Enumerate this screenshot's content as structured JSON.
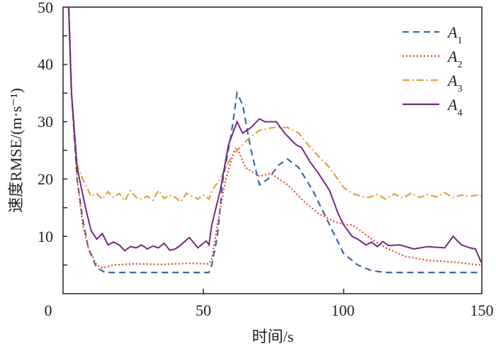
{
  "chart_data": {
    "type": "line",
    "title": "",
    "xlabel": "时间/s",
    "ylabel": "速度RMSE/(m·s⁻¹)",
    "xlim": [
      0,
      150
    ],
    "ylim": [
      0,
      50
    ],
    "xticks": [
      "0",
      "50",
      "100",
      "150"
    ],
    "yticks": [
      "10",
      "20",
      "30",
      "40",
      "50"
    ],
    "grid": false,
    "legend_position": "top-right",
    "series": [
      {
        "name": "A",
        "sub": "1",
        "color": "#3a67a8",
        "dash": "9,6",
        "x": [
          2,
          3,
          5,
          7,
          9,
          12,
          15,
          20,
          30,
          40,
          52,
          53,
          55,
          57,
          60,
          62,
          64,
          67,
          70,
          73,
          77,
          80,
          84,
          89,
          95,
          100,
          105,
          110,
          115,
          130,
          150
        ],
        "y": [
          50,
          35,
          20,
          13,
          8,
          4.5,
          3.7,
          3.7,
          3.7,
          3.7,
          3.7,
          5,
          10,
          20,
          28,
          35,
          33,
          25,
          19,
          20,
          22.5,
          23.5,
          22,
          18,
          12,
          7,
          5,
          4,
          3.7,
          3.7,
          3.7
        ]
      },
      {
        "name": "A",
        "sub": "2",
        "color": "#d9462b",
        "dash": "2,3",
        "x": [
          2,
          3,
          5,
          7,
          9,
          12,
          14,
          18,
          25,
          35,
          45,
          52,
          53,
          55,
          58,
          61,
          62,
          65,
          70,
          74,
          80,
          86,
          91,
          97,
          101,
          103,
          106,
          110,
          115,
          122,
          130,
          140,
          148,
          150
        ],
        "y": [
          50,
          35,
          20,
          12,
          8,
          5,
          4.5,
          5,
          5.2,
          5.1,
          5.3,
          5.2,
          6,
          12,
          20,
          25,
          25.5,
          22,
          20.5,
          21,
          19,
          16,
          14,
          12.5,
          12,
          12,
          11,
          9.5,
          8,
          6.5,
          5.8,
          5.5,
          5,
          5.2
        ]
      },
      {
        "name": "A",
        "sub": "3",
        "color": "#e3a13a",
        "dash": "10,4,2,4",
        "x": [
          2,
          3,
          5,
          7,
          10,
          12,
          14,
          16,
          18,
          20,
          22,
          24,
          26,
          28,
          30,
          32,
          34,
          36,
          38,
          40,
          42,
          44,
          46,
          48,
          50,
          52,
          53,
          56,
          59,
          62,
          66,
          70,
          75,
          80,
          84,
          89,
          95,
          100,
          103,
          106,
          109,
          112,
          115,
          118,
          121,
          124,
          127,
          130,
          133,
          136,
          139,
          142,
          145,
          148,
          150
        ],
        "y": [
          50,
          35,
          22.5,
          20,
          17,
          17.5,
          16.5,
          17.8,
          16.8,
          17.5,
          16.2,
          18,
          16.8,
          16.5,
          17,
          16.3,
          18,
          16.6,
          17.2,
          16.8,
          16,
          17.5,
          17,
          16.5,
          17.2,
          16.5,
          18,
          20,
          23,
          25,
          27,
          28.5,
          29,
          29,
          28,
          25,
          22,
          18.5,
          17.5,
          17,
          16.8,
          17.3,
          16.5,
          17.4,
          16.7,
          17.5,
          16.8,
          17.3,
          16.9,
          17.6,
          16.8,
          17.2,
          17,
          17.2,
          17
        ]
      },
      {
        "name": "A",
        "sub": "4",
        "color": "#74287d",
        "dash": "",
        "x": [
          2,
          3,
          5,
          8,
          10,
          12,
          14,
          16,
          18,
          20,
          22,
          24,
          26,
          28,
          30,
          32,
          34,
          36,
          38,
          40,
          42,
          45,
          48,
          51,
          52,
          53,
          56,
          59,
          62,
          64,
          67,
          70,
          72,
          76,
          79,
          83,
          85,
          88,
          91,
          95,
          98,
          100,
          103,
          105,
          108,
          110,
          112,
          114,
          116,
          120,
          125,
          130,
          136,
          139,
          142,
          145,
          147,
          149
        ],
        "y": [
          50,
          35,
          22,
          15,
          11,
          9.5,
          10.5,
          8.5,
          9,
          8.5,
          7.5,
          8.2,
          8,
          8.5,
          7.8,
          8.3,
          8,
          8.8,
          7.6,
          7.8,
          8.5,
          9.8,
          8,
          9.2,
          8.5,
          12,
          18,
          26,
          30,
          28,
          29,
          30.5,
          30,
          30,
          28,
          26,
          25.5,
          23,
          21,
          18,
          14,
          12,
          10,
          9.5,
          8.5,
          9,
          8.2,
          9.1,
          8.4,
          8.5,
          7.8,
          8.2,
          8,
          10,
          8.5,
          8,
          7.8,
          5.5
        ]
      }
    ]
  }
}
